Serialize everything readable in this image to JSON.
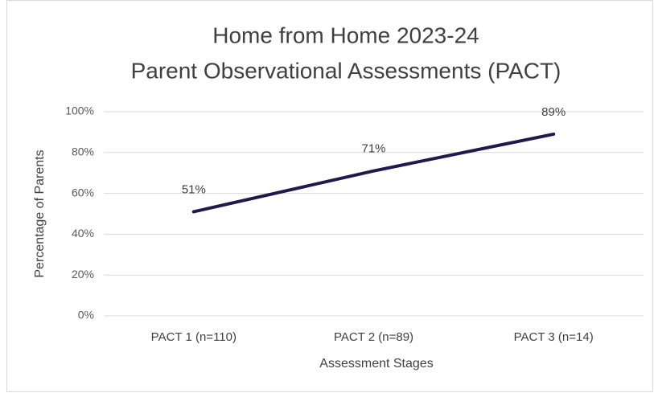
{
  "chart_data": {
    "type": "line",
    "title": [
      "Home from Home 2023-24",
      "Parent Observational Assessments (PACT)"
    ],
    "x_label": "Assessment Stages",
    "y_label": "Percentage of Parents",
    "categories": [
      "PACT 1 (n=110)",
      "PACT 2 (n=89)",
      "PACT 3 (n=14)"
    ],
    "series": [
      {
        "name": "Percentage of Parents",
        "color": "#1e1b4b",
        "values": [
          51,
          71,
          89
        ],
        "value_labels": [
          "51%",
          "71%",
          "89%"
        ]
      }
    ],
    "ylim": [
      0,
      100
    ],
    "yticks": [
      {
        "value": 0,
        "label": "0%"
      },
      {
        "value": 20,
        "label": "20%"
      },
      {
        "value": 40,
        "label": "40%"
      },
      {
        "value": 60,
        "label": "60%"
      },
      {
        "value": 80,
        "label": "80%"
      },
      {
        "value": 100,
        "label": "100%"
      }
    ],
    "grid": true
  }
}
